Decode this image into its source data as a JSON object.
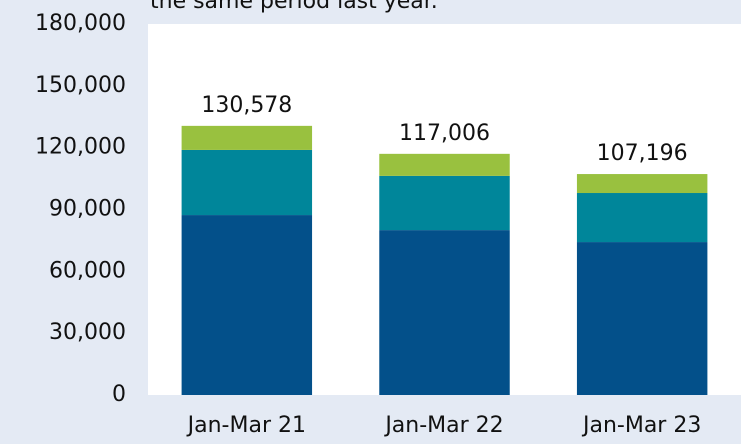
{
  "chart_data": {
    "type": "stacked_bar",
    "title": "the same period last year.",
    "categories": [
      "Jan-Mar 21",
      "Jan-Mar 22",
      "Jan-Mar 23"
    ],
    "series": [
      {
        "color": "#03508a",
        "values": [
          87300,
          80000,
          74200
        ]
      },
      {
        "color": "#00869a",
        "values": [
          31600,
          26300,
          23800
        ]
      },
      {
        "color": "#99c13f",
        "values": [
          11678,
          10706,
          9196
        ]
      }
    ],
    "totals": [
      130578,
      117006,
      107196
    ],
    "total_labels": [
      "130,578",
      "117,006",
      "107,196"
    ],
    "ylim": [
      0,
      180000
    ],
    "yticks": [
      0,
      {
        "value": 30000,
        "label": "30,000"
      },
      {
        "value": 60000,
        "label": "60,000"
      },
      {
        "value": 90000,
        "label": "90,000"
      },
      {
        "value": 120000,
        "label": "120,000"
      },
      {
        "value": 150000,
        "label": "150,000"
      },
      {
        "value": 180000,
        "label": "180,000"
      }
    ],
    "grid": false
  }
}
